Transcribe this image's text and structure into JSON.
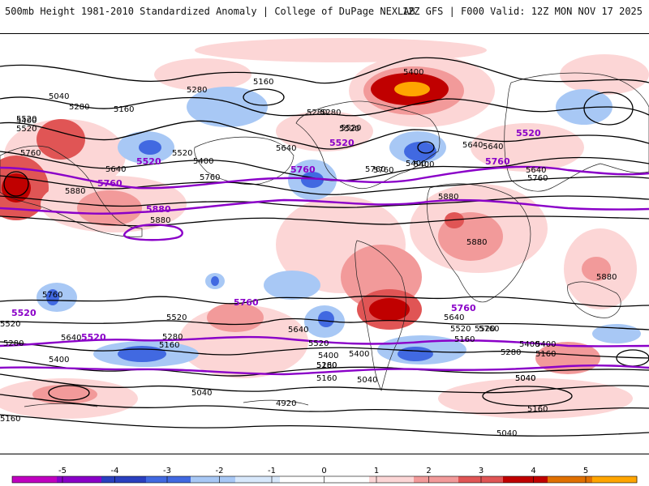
{
  "header": {
    "title": "500mb Height 1981-2010 Standardized Anomaly | College of DuPage NEXLAB",
    "model_info": "12Z GFS | F000 Valid: 12Z MON NOV 17 2025"
  },
  "colors": {
    "contour": "#000000",
    "highlight_contour": "#8a00c8",
    "coast": "#222222"
  },
  "contour_labels": [
    "5400",
    "5040",
    "5280",
    "5160",
    "5400",
    "5520",
    "5760",
    "5640",
    "5880",
    "5880",
    "5160",
    "5280",
    "5520",
    "5280",
    "5520",
    "5400",
    "5760",
    "5640",
    "5400",
    "5640",
    "5760",
    "5520",
    "5880",
    "5880",
    "5640",
    "5760",
    "5880",
    "5760",
    "5520",
    "5280",
    "5160",
    "5640",
    "5520",
    "5280",
    "5160",
    "5400",
    "5160",
    "5040",
    "4920",
    "5040",
    "5400",
    "5640",
    "5520",
    "5400",
    "5280",
    "5160",
    "5040",
    "5160",
    "5040",
    "5520",
    "5400",
    "5760",
    "5640",
    "5520",
    "5520",
    "5160",
    "5040",
    "5160",
    "5280",
    "5400",
    "5400",
    "5280",
    "5640",
    "5760"
  ],
  "highlight_labels": [
    "5520",
    "5760",
    "5880",
    "5520",
    "5760",
    "5520",
    "5760",
    "5760",
    "5520",
    "5760",
    "5520"
  ],
  "legend": {
    "ticks": [
      "-5",
      "-4",
      "-3",
      "-2",
      "-1",
      "0",
      "1",
      "2",
      "3",
      "4",
      "5"
    ],
    "colors": [
      "#c000c0",
      "#8a00c8",
      "#2a3fbf",
      "#4169e1",
      "#a8c8f5",
      "#d8e8fb",
      "#ffffff",
      "#ffffff",
      "#fcd6d6",
      "#f29a9a",
      "#e05555",
      "#c00000",
      "#e07000",
      "#ffa500"
    ]
  }
}
